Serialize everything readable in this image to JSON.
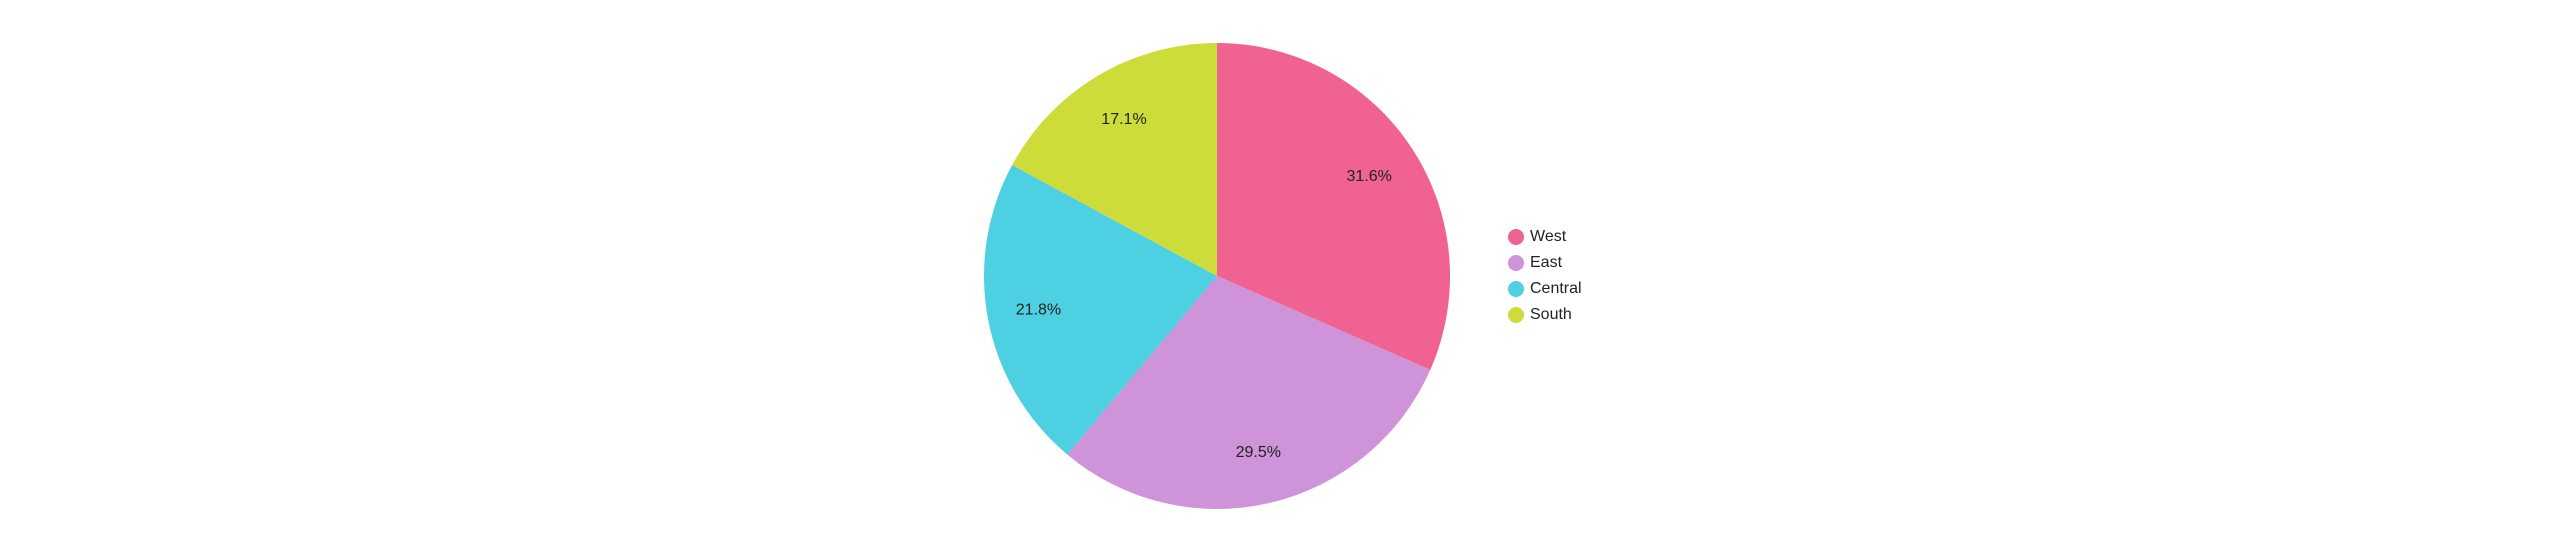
{
  "chart_data": {
    "type": "pie",
    "categories": [
      "West",
      "East",
      "Central",
      "South"
    ],
    "values": [
      31.6,
      29.5,
      21.8,
      17.1
    ],
    "value_labels": [
      "31.6%",
      "29.5%",
      "21.8%",
      "17.1%"
    ],
    "colors": [
      "#f06292",
      "#ce93d8",
      "#4dd0e1",
      "#cddc39"
    ],
    "legend": "right"
  }
}
